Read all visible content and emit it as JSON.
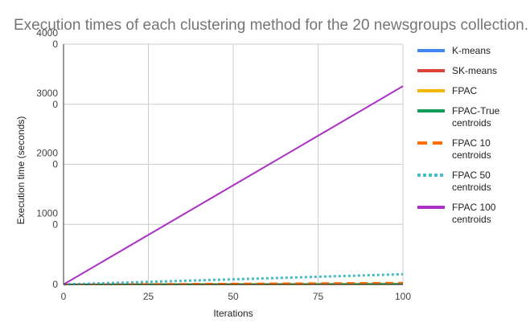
{
  "chart_data": {
    "type": "line",
    "title": "Execution times of each clustering method for the 20 newsgroups collection.",
    "xlabel": "Iterations",
    "ylabel": "Execution time (seconds)",
    "xlim": [
      0,
      100
    ],
    "ylim": [
      0,
      40000
    ],
    "x_ticks": [
      "0",
      "25",
      "50",
      "75",
      "100"
    ],
    "y_ticks": [
      {
        "value": 0,
        "lines": [
          "0"
        ]
      },
      {
        "value": 10000,
        "lines": [
          "1000",
          "0"
        ]
      },
      {
        "value": 20000,
        "lines": [
          "2000",
          "0"
        ]
      },
      {
        "value": 30000,
        "lines": [
          "3000",
          "0"
        ]
      },
      {
        "value": 40000,
        "lines": [
          "4000",
          "0"
        ]
      }
    ],
    "grid": true,
    "legend_position": "right",
    "series": [
      {
        "name_lines": [
          "K-means"
        ],
        "color": "#4285f4",
        "dash": "solid",
        "x": [
          0,
          100
        ],
        "y": [
          0,
          60
        ]
      },
      {
        "name_lines": [
          "SK-means"
        ],
        "color": "#db4437",
        "dash": "solid",
        "x": [
          0,
          100
        ],
        "y": [
          0,
          60
        ]
      },
      {
        "name_lines": [
          "FPAC"
        ],
        "color": "#f4b400",
        "dash": "solid",
        "x": [
          0,
          100
        ],
        "y": [
          0,
          60
        ]
      },
      {
        "name_lines": [
          "FPAC-True",
          "centroids"
        ],
        "color": "#0f9d58",
        "dash": "solid",
        "x": [
          0,
          100
        ],
        "y": [
          0,
          100
        ]
      },
      {
        "name_lines": [
          "FPAC 10",
          "centroids"
        ],
        "color": "#ff6d00",
        "dash": "dashed",
        "x": [
          0,
          100
        ],
        "y": [
          0,
          300
        ]
      },
      {
        "name_lines": [
          "FPAC 50",
          "centroids"
        ],
        "color": "#46bdc6",
        "dash": "dotted",
        "x": [
          0,
          100
        ],
        "y": [
          0,
          1700
        ]
      },
      {
        "name_lines": [
          "FPAC 100",
          "centroids"
        ],
        "color": "#ab30c4",
        "dash": "solid",
        "x": [
          0,
          100
        ],
        "y": [
          0,
          33000
        ]
      }
    ]
  }
}
